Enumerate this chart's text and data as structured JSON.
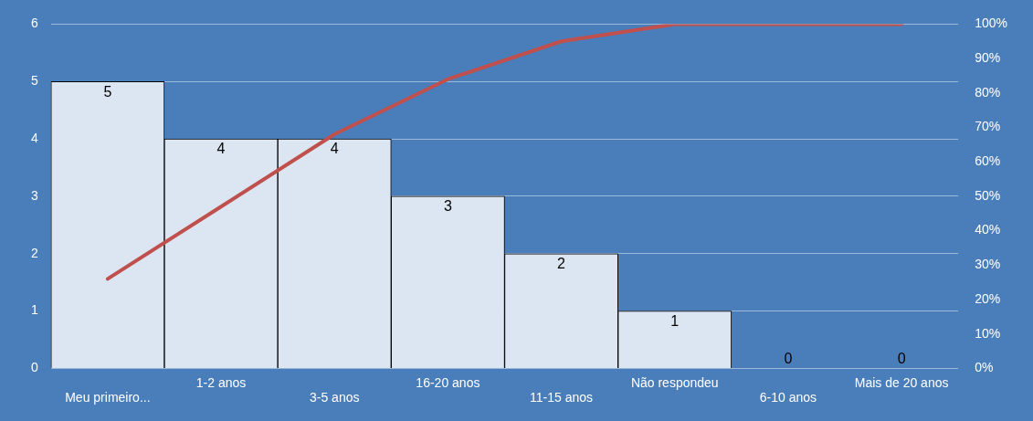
{
  "chart_data": {
    "type": "bar",
    "categories": [
      "Meu primeiro...",
      "1-2 anos",
      "3-5 anos",
      "16-20 anos",
      "11-15 anos",
      "Não respondeu",
      "6-10 anos",
      "Mais de 20 anos"
    ],
    "series": [
      {
        "color": "#dce6f2",
        "values": [
          5,
          4,
          4,
          3,
          2,
          1,
          0,
          0
        ],
        "value_labels": [
          "5",
          "4",
          "4",
          "3",
          "2",
          "1",
          "0",
          "0"
        ]
      },
      {
        "type": "line",
        "axis": "y2",
        "color": "#c0504d",
        "values": [
          26,
          47,
          68,
          84,
          95,
          100,
          100,
          100
        ]
      }
    ],
    "ylim": [
      0,
      6
    ],
    "yticks": [
      0,
      1,
      2,
      3,
      4,
      5,
      6
    ],
    "y2lim": [
      0,
      100
    ],
    "y2ticks": [
      {
        "value": 0,
        "label": "0%"
      },
      {
        "value": 10,
        "label": "10%"
      },
      {
        "value": 20,
        "label": "20%"
      },
      {
        "value": 30,
        "label": "30%"
      },
      {
        "value": 40,
        "label": "40%"
      },
      {
        "value": 50,
        "label": "50%"
      },
      {
        "value": 60,
        "label": "60%"
      },
      {
        "value": 70,
        "label": "70%"
      },
      {
        "value": 80,
        "label": "80%"
      },
      {
        "value": 90,
        "label": "90%"
      },
      {
        "value": 100,
        "label": "100%"
      }
    ],
    "grid": "y",
    "legend": false,
    "marker": "none",
    "line_style": "solid"
  }
}
